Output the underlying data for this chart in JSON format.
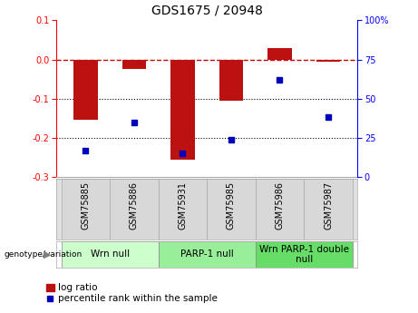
{
  "title": "GDS1675 / 20948",
  "samples": [
    "GSM75885",
    "GSM75886",
    "GSM75931",
    "GSM75985",
    "GSM75986",
    "GSM75987"
  ],
  "log_ratios": [
    -0.155,
    -0.025,
    -0.255,
    -0.105,
    0.028,
    -0.005
  ],
  "percentile_ranks": [
    17,
    35,
    15,
    24,
    62,
    38
  ],
  "groups": [
    {
      "label": "Wrn null",
      "start": 0,
      "end": 1,
      "color": "#ccffcc"
    },
    {
      "label": "PARP-1 null",
      "start": 2,
      "end": 3,
      "color": "#99ee99"
    },
    {
      "label": "Wrn PARP-1 double\nnull",
      "start": 4,
      "end": 5,
      "color": "#66dd66"
    }
  ],
  "ylim_left": [
    -0.3,
    0.1
  ],
  "ylim_right": [
    0,
    100
  ],
  "bar_color": "#bb1111",
  "dot_color": "#0000bb",
  "hline_color": "#cc0000",
  "bg_color": "#ffffff",
  "bar_width": 0.5,
  "title_fontsize": 10,
  "tick_fontsize": 7,
  "label_fontsize": 7.5,
  "group_label_fontsize": 7.5
}
